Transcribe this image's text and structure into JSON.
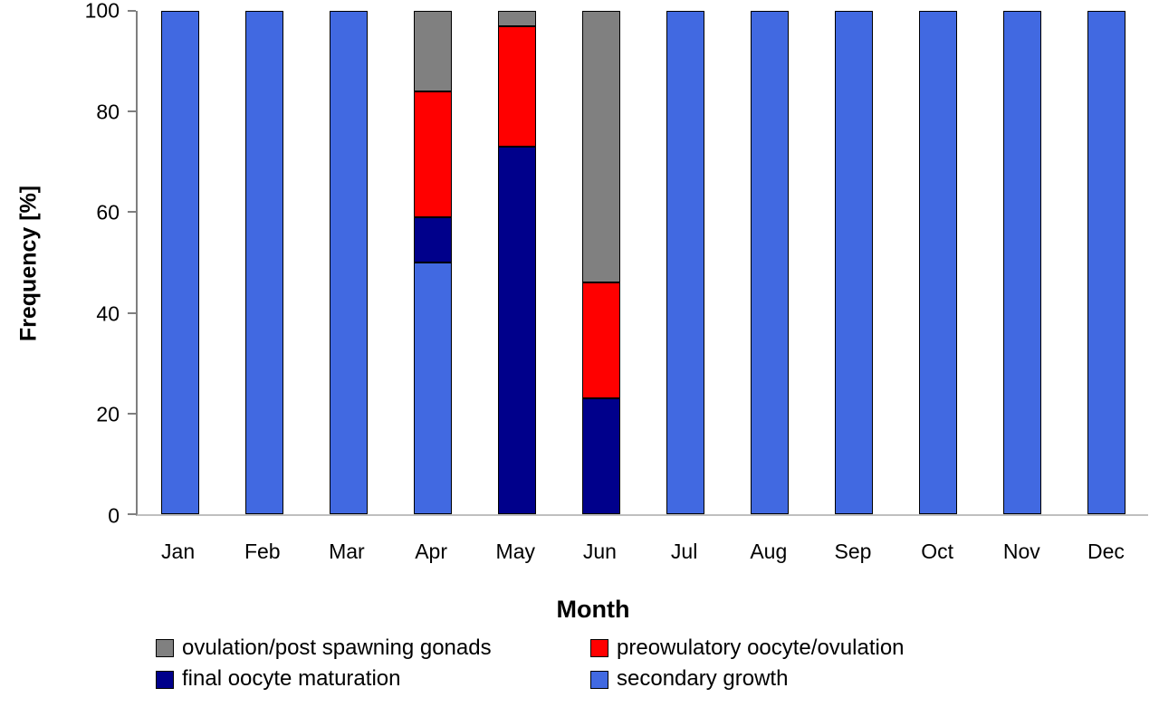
{
  "chart_data": {
    "type": "bar",
    "stacked": true,
    "title": "",
    "xlabel": "Month",
    "ylabel": "Frequency [%]",
    "ylim": [
      0,
      100
    ],
    "yticks": [
      0,
      20,
      40,
      60,
      80,
      100
    ],
    "grid": false,
    "categories": [
      "Jan",
      "Feb",
      "Mar",
      "Apr",
      "May",
      "Jun",
      "Jul",
      "Aug",
      "Sep",
      "Oct",
      "Nov",
      "Dec"
    ],
    "series": [
      {
        "name": "secondary growth",
        "color": "#4169E1",
        "values": [
          100,
          100,
          100,
          50,
          0,
          0,
          100,
          100,
          100,
          100,
          100,
          100
        ]
      },
      {
        "name": "final oocyte maturation",
        "color": "#00008B",
        "values": [
          0,
          0,
          0,
          9,
          73,
          23,
          0,
          0,
          0,
          0,
          0,
          0
        ]
      },
      {
        "name": "preowulatory oocyte/ovulation",
        "color": "#FF0000",
        "values": [
          0,
          0,
          0,
          25,
          24,
          23,
          0,
          0,
          0,
          0,
          0,
          0
        ]
      },
      {
        "name": "ovulation/post spawning gonads",
        "color": "#808080",
        "values": [
          0,
          0,
          0,
          16,
          3,
          54,
          0,
          0,
          0,
          0,
          0,
          0
        ]
      }
    ],
    "legend": {
      "position": "bottom",
      "order": [
        3,
        2,
        1,
        0
      ]
    }
  }
}
